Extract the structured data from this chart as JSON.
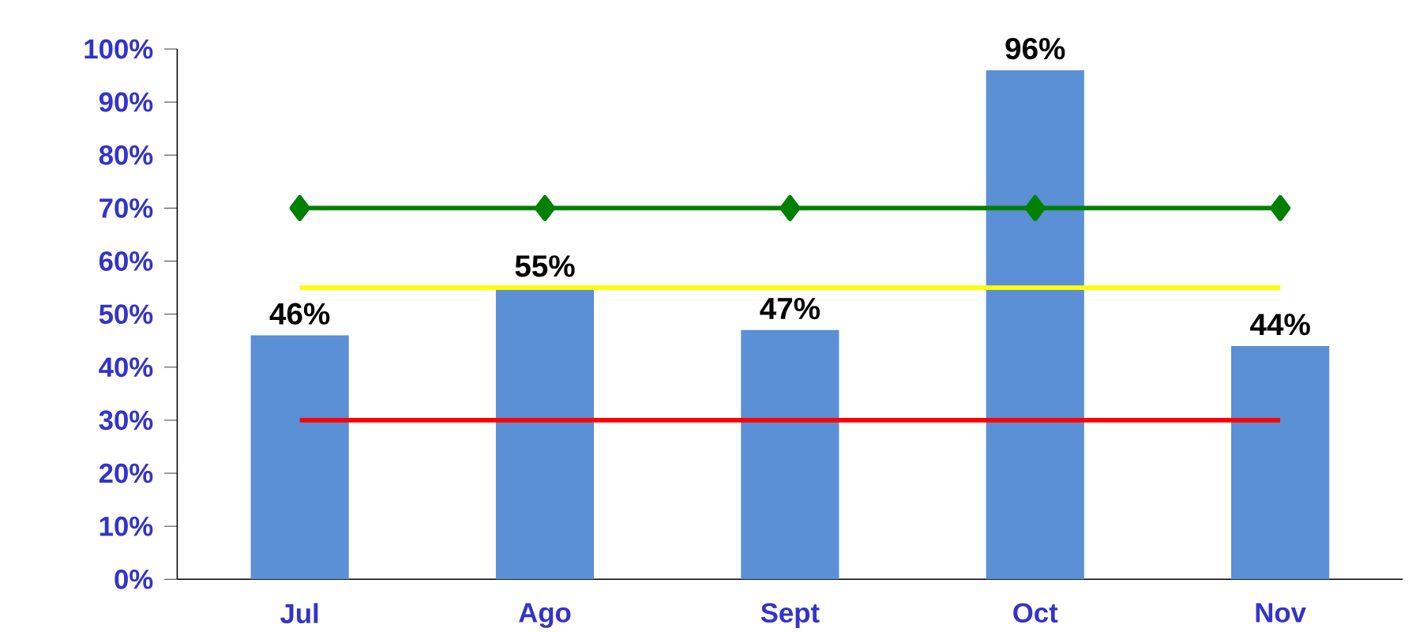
{
  "chart_data": {
    "type": "bar",
    "categories": [
      "Jul",
      "Ago",
      "Sept",
      "Oct",
      "Nov"
    ],
    "series": [
      {
        "color": "#5b8fd6",
        "values": [
          46,
          55,
          47,
          96,
          44
        ],
        "value_labels": [
          "46%",
          "55%",
          "47%",
          "96%",
          "44%"
        ]
      },
      {
        "type": "line",
        "color": "#008000",
        "values": [
          70,
          70,
          70,
          70,
          70
        ],
        "marker": "diamond"
      },
      {
        "type": "line",
        "color": "#ffff00",
        "values": [
          55,
          55,
          55,
          55,
          55
        ]
      },
      {
        "type": "line",
        "color": "#ff0000",
        "values": [
          30,
          30,
          30,
          30,
          30
        ]
      }
    ],
    "ylim": [
      0,
      100
    ],
    "yticks": [
      {
        "value": 0,
        "label": "0%"
      },
      {
        "value": 10,
        "label": "10%"
      },
      {
        "value": 20,
        "label": "20%"
      },
      {
        "value": 30,
        "label": "30%"
      },
      {
        "value": 40,
        "label": "40%"
      },
      {
        "value": 50,
        "label": "50%"
      },
      {
        "value": 60,
        "label": "60%"
      },
      {
        "value": 70,
        "label": "70%"
      },
      {
        "value": 80,
        "label": "80%"
      },
      {
        "value": 90,
        "label": "90%"
      },
      {
        "value": 100,
        "label": "100%"
      }
    ],
    "grid": false
  }
}
